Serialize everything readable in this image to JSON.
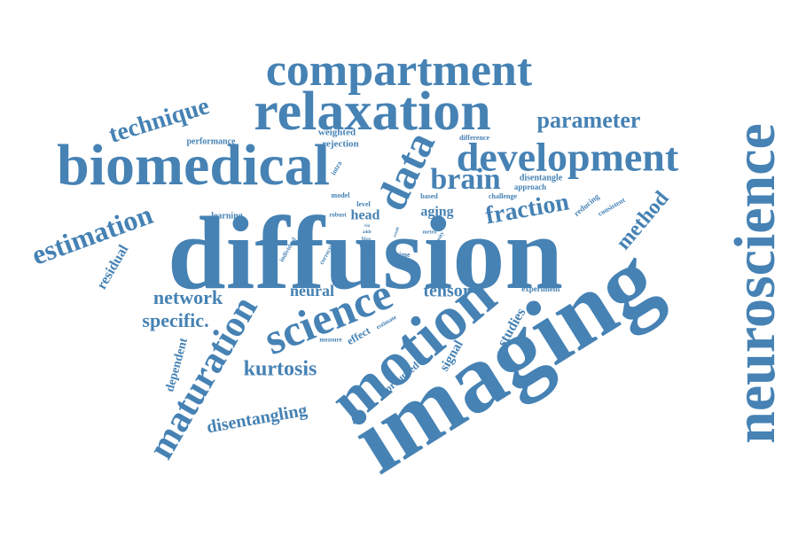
{
  "word_color": "#4682b4",
  "background_color": "#ffffff",
  "words": [
    {
      "name": "word-neuroscience",
      "text": "neuroscience"
    },
    {
      "name": "word-imaging",
      "text": "imaging"
    },
    {
      "name": "word-diffusion",
      "text": "diffusion"
    },
    {
      "name": "word-biomedical",
      "text": "biomedical"
    },
    {
      "name": "word-relaxation",
      "text": "relaxation"
    },
    {
      "name": "word-compartment",
      "text": "compartment"
    },
    {
      "name": "word-development",
      "text": "development"
    },
    {
      "name": "word-motion",
      "text": "motion"
    },
    {
      "name": "word-science",
      "text": "science"
    },
    {
      "name": "word-data",
      "text": "data"
    },
    {
      "name": "word-maturation",
      "text": "maturation"
    },
    {
      "name": "word-brain",
      "text": "brain"
    },
    {
      "name": "word-estimation",
      "text": "estimation"
    },
    {
      "name": "word-fraction",
      "text": "fraction"
    },
    {
      "name": "word-technique",
      "text": "technique"
    },
    {
      "name": "word-parameter",
      "text": "parameter"
    },
    {
      "name": "word-kurtosis",
      "text": "kurtosis"
    },
    {
      "name": "word-method",
      "text": "method"
    },
    {
      "name": "word-network",
      "text": "network"
    },
    {
      "name": "word-specific",
      "text": "specific."
    },
    {
      "name": "word-disentangling",
      "text": "disentangling"
    },
    {
      "name": "word-tensor",
      "text": "tensor"
    },
    {
      "name": "word-neural",
      "text": "neural"
    },
    {
      "name": "word-residual",
      "text": "residual"
    },
    {
      "name": "word-head",
      "text": "head"
    },
    {
      "name": "word-aging",
      "text": "aging"
    },
    {
      "name": "word-studies",
      "text": "studies"
    },
    {
      "name": "word-signal",
      "text": "signal"
    },
    {
      "name": "word-dependent",
      "text": "dependent"
    },
    {
      "name": "word-corrupted",
      "text": "corrupted"
    },
    {
      "name": "word-effect",
      "text": "effect"
    },
    {
      "name": "word-weighted",
      "text": "weighted"
    },
    {
      "name": "word-rejection",
      "text": "rejection"
    },
    {
      "name": "word-performance",
      "text": "performance"
    },
    {
      "name": "word-learning",
      "text": "learning"
    },
    {
      "name": "word-disentangle",
      "text": "disentangle"
    },
    {
      "name": "word-approach",
      "text": "approach"
    },
    {
      "name": "word-challenge",
      "text": "challenge"
    },
    {
      "name": "word-difference",
      "text": "difference"
    },
    {
      "name": "word-reducing",
      "text": "reducing"
    },
    {
      "name": "word-consistent",
      "text": "consistent"
    },
    {
      "name": "word-experiment",
      "text": "experiment"
    },
    {
      "name": "word-intra",
      "text": "intra"
    },
    {
      "name": "word-model",
      "text": "model"
    },
    {
      "name": "word-level",
      "text": "level"
    },
    {
      "name": "word-robust",
      "text": "robust"
    },
    {
      "name": "word-based",
      "text": "based"
    },
    {
      "name": "word-time",
      "text": "time"
    },
    {
      "name": "word-individual",
      "text": "individual"
    },
    {
      "name": "word-correction",
      "text": "correction"
    },
    {
      "name": "word-measure",
      "text": "measure"
    },
    {
      "name": "word-estimate",
      "text": "estimate"
    },
    {
      "name": "word-metric",
      "text": "metric"
    },
    {
      "name": "word-density",
      "text": "density"
    },
    {
      "name": "word-result",
      "text": "result"
    },
    {
      "name": "word-bias",
      "text": "bias"
    },
    {
      "name": "word-group",
      "text": "group"
    },
    {
      "name": "word-show",
      "text": "show"
    },
    {
      "name": "word-value",
      "text": "value"
    },
    {
      "name": "word-via",
      "text": "via"
    },
    {
      "name": "word-addr",
      "text": "addr"
    }
  ]
}
